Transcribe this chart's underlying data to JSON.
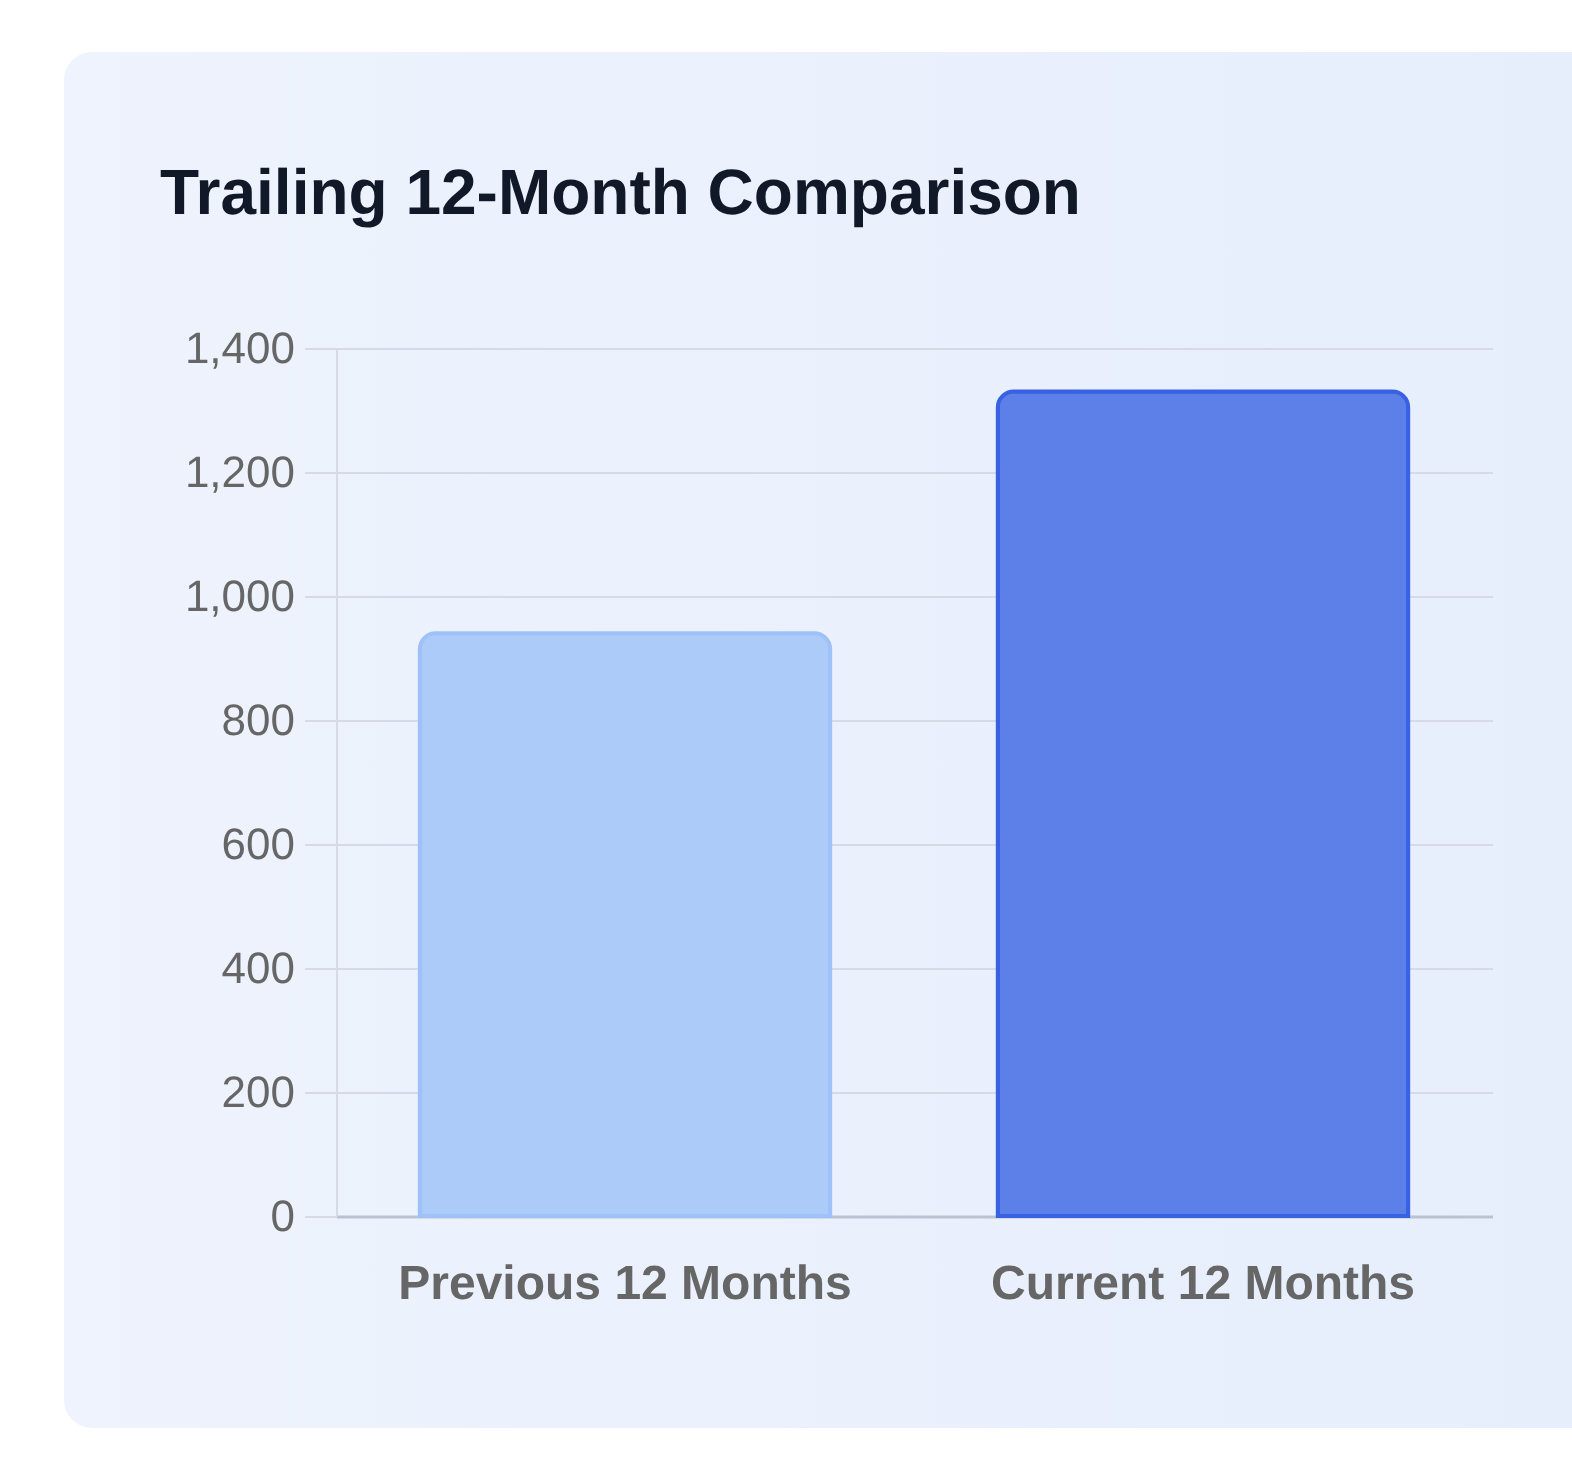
{
  "chart_data": {
    "type": "bar",
    "title": "Trailing 12-Month Comparison",
    "categories": [
      "Previous 12 Months",
      "Current 12 Months"
    ],
    "values": [
      940,
      1330
    ],
    "colors": [
      "#adcbf9",
      "#5c7fe8"
    ],
    "ylim": [
      0,
      1400
    ],
    "yticks": [
      0,
      200,
      400,
      600,
      800,
      {
        "value": 1000,
        "label": "1,000"
      },
      {
        "value": 1200,
        "label": "1,200"
      },
      {
        "value": 1400,
        "label": "1,400"
      }
    ],
    "grid": "y"
  }
}
